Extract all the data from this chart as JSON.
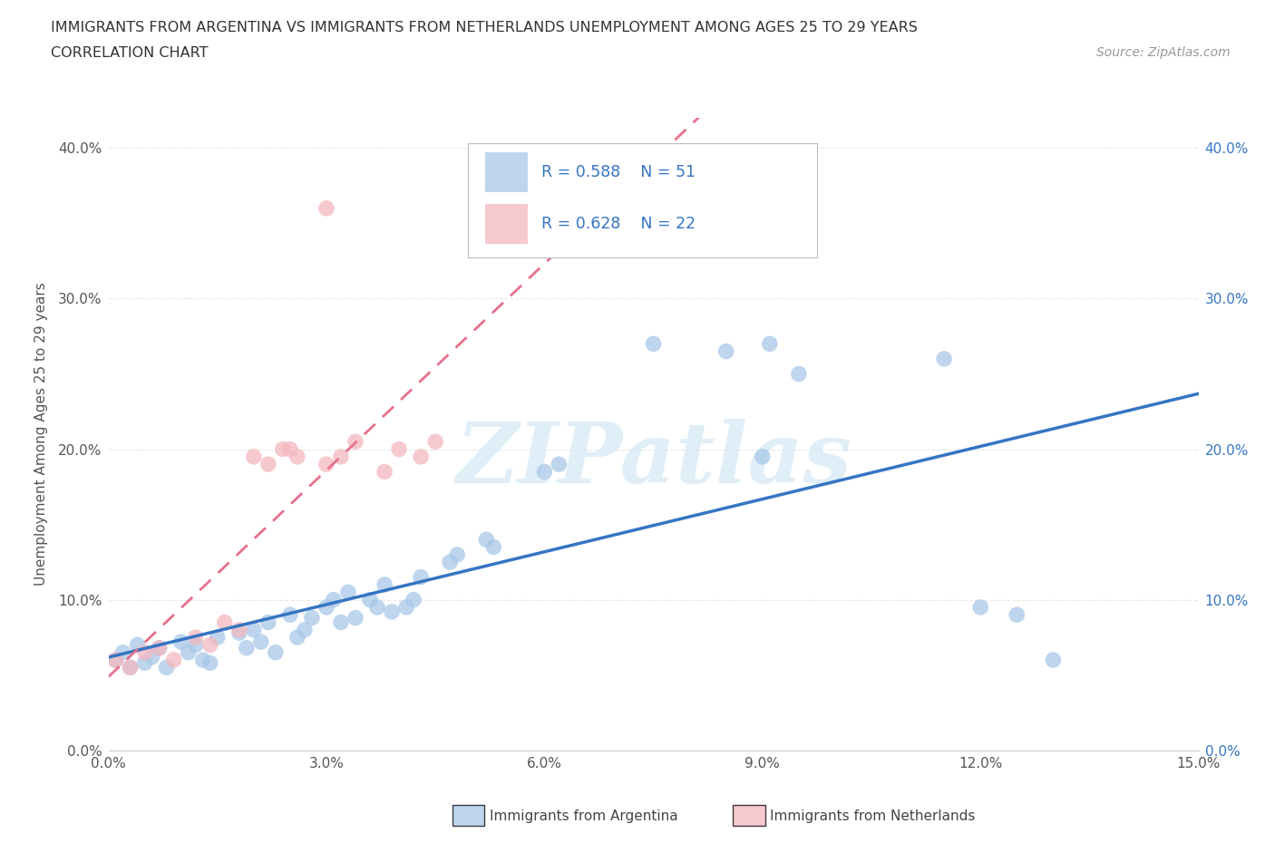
{
  "title_line1": "IMMIGRANTS FROM ARGENTINA VS IMMIGRANTS FROM NETHERLANDS UNEMPLOYMENT AMONG AGES 25 TO 29 YEARS",
  "title_line2": "CORRELATION CHART",
  "source_text": "Source: ZipAtlas.com",
  "ylabel": "Unemployment Among Ages 25 to 29 years",
  "xlim": [
    0.0,
    0.15
  ],
  "ylim": [
    0.0,
    0.42
  ],
  "xticks": [
    0.0,
    0.03,
    0.06,
    0.09,
    0.12,
    0.15
  ],
  "xtick_labels": [
    "0.0%",
    "3.0%",
    "6.0%",
    "9.0%",
    "12.0%",
    "15.0%"
  ],
  "ytick_labels": [
    "0.0%",
    "10.0%",
    "20.0%",
    "30.0%",
    "40.0%"
  ],
  "yticks": [
    0.0,
    0.1,
    0.2,
    0.3,
    0.4
  ],
  "argentina_color": "#a8c8e8",
  "netherlands_color": "#f4b8c0",
  "argentina_R": 0.588,
  "argentina_N": 51,
  "netherlands_R": 0.628,
  "netherlands_N": 22,
  "argentina_line_color": "#3575c3",
  "netherlands_line_color": "#e8708a",
  "watermark": "ZIPatlas",
  "background_color": "#ffffff",
  "grid_color": "#e8e8e8",
  "argentina_x": [
    0.001,
    0.002,
    0.003,
    0.004,
    0.005,
    0.006,
    0.007,
    0.008,
    0.01,
    0.011,
    0.012,
    0.013,
    0.014,
    0.015,
    0.018,
    0.019,
    0.02,
    0.021,
    0.022,
    0.023,
    0.025,
    0.026,
    0.027,
    0.028,
    0.03,
    0.031,
    0.032,
    0.033,
    0.034,
    0.036,
    0.037,
    0.038,
    0.039,
    0.041,
    0.042,
    0.043,
    0.047,
    0.048,
    0.052,
    0.053,
    0.06,
    0.062,
    0.075,
    0.085,
    0.09,
    0.091,
    0.095,
    0.115,
    0.12,
    0.125,
    0.13
  ],
  "argentina_y": [
    0.06,
    0.065,
    0.055,
    0.07,
    0.058,
    0.062,
    0.068,
    0.055,
    0.072,
    0.065,
    0.07,
    0.06,
    0.058,
    0.075,
    0.078,
    0.068,
    0.08,
    0.072,
    0.085,
    0.065,
    0.09,
    0.075,
    0.08,
    0.088,
    0.095,
    0.1,
    0.085,
    0.105,
    0.088,
    0.1,
    0.095,
    0.11,
    0.092,
    0.095,
    0.1,
    0.115,
    0.125,
    0.13,
    0.14,
    0.135,
    0.185,
    0.19,
    0.27,
    0.265,
    0.195,
    0.27,
    0.25,
    0.26,
    0.095,
    0.09,
    0.06
  ],
  "netherlands_x": [
    0.001,
    0.003,
    0.005,
    0.007,
    0.009,
    0.012,
    0.014,
    0.016,
    0.018,
    0.022,
    0.024,
    0.026,
    0.03,
    0.032,
    0.034,
    0.038,
    0.04,
    0.043,
    0.045,
    0.02,
    0.025,
    0.03
  ],
  "netherlands_y": [
    0.06,
    0.055,
    0.065,
    0.068,
    0.06,
    0.075,
    0.07,
    0.085,
    0.08,
    0.19,
    0.2,
    0.195,
    0.19,
    0.195,
    0.205,
    0.185,
    0.2,
    0.195,
    0.205,
    0.195,
    0.2,
    0.36
  ]
}
